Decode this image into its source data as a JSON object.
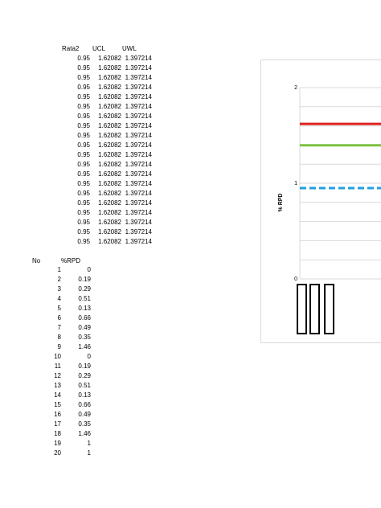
{
  "top_table": {
    "headers": [
      "Rata2",
      "UCL",
      "UWL"
    ],
    "rows": [
      [
        "0.95",
        "1.62082",
        "1.397214"
      ],
      [
        "0.95",
        "1.62082",
        "1.397214"
      ],
      [
        "0.95",
        "1.62082",
        "1.397214"
      ],
      [
        "0.95",
        "1.62082",
        "1.397214"
      ],
      [
        "0.95",
        "1.62082",
        "1.397214"
      ],
      [
        "0.95",
        "1.62082",
        "1.397214"
      ],
      [
        "0.95",
        "1.62082",
        "1.397214"
      ],
      [
        "0.95",
        "1.62082",
        "1.397214"
      ],
      [
        "0.95",
        "1.62082",
        "1.397214"
      ],
      [
        "0.95",
        "1.62082",
        "1.397214"
      ],
      [
        "0.95",
        "1.62082",
        "1.397214"
      ],
      [
        "0.95",
        "1.62082",
        "1.397214"
      ],
      [
        "0.95",
        "1.62082",
        "1.397214"
      ],
      [
        "0.95",
        "1.62082",
        "1.397214"
      ],
      [
        "0.95",
        "1.62082",
        "1.397214"
      ],
      [
        "0.95",
        "1.62082",
        "1.397214"
      ],
      [
        "0.95",
        "1.62082",
        "1.397214"
      ],
      [
        "0.95",
        "1.62082",
        "1.397214"
      ],
      [
        "0.95",
        "1.62082",
        "1.397214"
      ],
      [
        "0.95",
        "1.62082",
        "1.397214"
      ]
    ]
  },
  "bottom_table": {
    "headers": [
      "No",
      "%RPD"
    ],
    "rows": [
      [
        "1",
        "0"
      ],
      [
        "2",
        "0.19"
      ],
      [
        "3",
        "0.29"
      ],
      [
        "4",
        "0.51"
      ],
      [
        "5",
        "0.13"
      ],
      [
        "6",
        "0.66"
      ],
      [
        "7",
        "0.49"
      ],
      [
        "8",
        "0.35"
      ],
      [
        "9",
        "1.46"
      ],
      [
        "10",
        "0"
      ],
      [
        "11",
        "0.19"
      ],
      [
        "12",
        "0.29"
      ],
      [
        "13",
        "0.51"
      ],
      [
        "14",
        "0.13"
      ],
      [
        "15",
        "0.66"
      ],
      [
        "16",
        "0.49"
      ],
      [
        "17",
        "0.35"
      ],
      [
        "18",
        "1.46"
      ],
      [
        "19",
        "1"
      ],
      [
        "20",
        "1"
      ]
    ]
  },
  "chart_data": {
    "type": "line",
    "ylabel": "% RPD",
    "yticks": [
      "0",
      "1",
      "2"
    ],
    "ylim": [
      0,
      2
    ],
    "lines": [
      {
        "value": 1.62082,
        "color": "#e02020",
        "style": "solid"
      },
      {
        "value": 1.397214,
        "color": "#7cc242",
        "style": "solid"
      },
      {
        "value": 0.95,
        "color": "#1fa0e0",
        "style": "dashed"
      }
    ],
    "grid": true
  }
}
